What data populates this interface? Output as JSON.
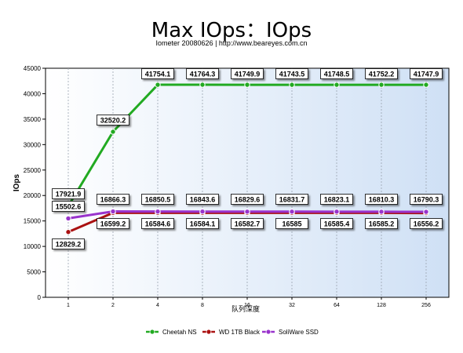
{
  "chart_data": {
    "type": "line",
    "title": "Max IOps：IOps",
    "subtitle": "Iometer 20080626 | http://www.beareyes.com.cn",
    "xlabel": "队列深度",
    "ylabel": "IOps",
    "categories": [
      "1",
      "2",
      "4",
      "8",
      "16",
      "32",
      "64",
      "128",
      "256"
    ],
    "ylim": [
      0,
      45000
    ],
    "yticks": [
      0,
      5000,
      10000,
      15000,
      20000,
      25000,
      30000,
      35000,
      40000,
      45000
    ],
    "grid": "vertical-dashed",
    "legend_position": "bottom",
    "series": [
      {
        "name": "Cheetah NS",
        "color": "#22aa22",
        "values": [
          17921.9,
          32520.2,
          41754.1,
          41764.3,
          41749.9,
          41743.5,
          41748.5,
          41752.2,
          41747.9
        ],
        "labels": [
          "17921.9",
          "32520.2",
          "41754.1",
          "41764.3",
          "41749.9",
          "41743.5",
          "41748.5",
          "41752.2",
          "41747.9"
        ]
      },
      {
        "name": "WD 1TB Black",
        "color": "#aa1111",
        "values": [
          12829.2,
          16599.2,
          16584.6,
          16584.1,
          16582.7,
          16585,
          16585.4,
          16585.2,
          16556.2
        ],
        "labels": [
          "12829.2",
          "16599.2",
          "16584.6",
          "16584.1",
          "16582.7",
          "16585",
          "16585.4",
          "16585.2",
          "16556.2"
        ]
      },
      {
        "name": "SoliWare SSD",
        "color": "#9933cc",
        "values": [
          15502.6,
          16866.3,
          16850.5,
          16843.6,
          16829.6,
          16831.7,
          16823.1,
          16810.3,
          16790.3
        ],
        "labels": [
          "15502.6",
          "16866.3",
          "16850.5",
          "16843.6",
          "16829.6",
          "16831.7",
          "16823.1",
          "16810.3",
          "16790.3"
        ]
      }
    ]
  }
}
